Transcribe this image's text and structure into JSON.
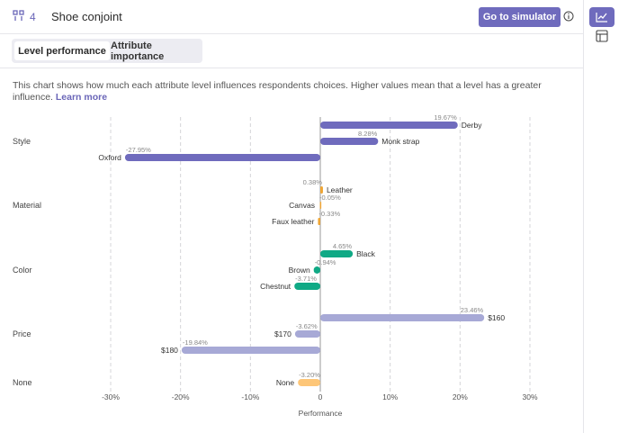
{
  "header": {
    "question_number": "4",
    "title": "Shoe conjoint",
    "simulator_button": "Go to simulator"
  },
  "tabs": [
    {
      "label": "Level performance",
      "active": true
    },
    {
      "label": "Attribute importance",
      "active": false
    }
  ],
  "description": {
    "text": "This chart shows how much each attribute level influences respondents choices. Higher values mean that a level has a greater influence. ",
    "link": "Learn more"
  },
  "colors": {
    "accent": "#6f6bbd",
    "Style": "#6f6bbd",
    "Material": "#f0a634",
    "Color": "#10a985",
    "Price": "#a7a9d6",
    "None": "#fdc678"
  },
  "chart_data": {
    "type": "bar",
    "orientation": "horizontal",
    "xlabel": "Performance",
    "xlim": [
      -30,
      30
    ],
    "xticks": [
      "-30%",
      "-20%",
      "-10%",
      "0",
      "10%",
      "20%",
      "30%"
    ],
    "xtick_values": [
      -30,
      -20,
      -10,
      0,
      10,
      20,
      30
    ],
    "grid": "vertical dashed",
    "groups": [
      {
        "attribute": "Style",
        "levels": [
          {
            "name": "Derby",
            "value": 19.67,
            "label": "19.67%"
          },
          {
            "name": "Monk strap",
            "value": 8.28,
            "label": "8.28%"
          },
          {
            "name": "Oxford",
            "value": -27.95,
            "label": "-27.95%"
          }
        ]
      },
      {
        "attribute": "Material",
        "levels": [
          {
            "name": "Leather",
            "value": 0.38,
            "label": "0.38%"
          },
          {
            "name": "Canvas",
            "value": -0.05,
            "label": "-0.05%"
          },
          {
            "name": "Faux leather",
            "value": -0.33,
            "label": "-0.33%"
          }
        ]
      },
      {
        "attribute": "Color",
        "levels": [
          {
            "name": "Black",
            "value": 4.65,
            "label": "4.65%"
          },
          {
            "name": "Brown",
            "value": -0.94,
            "label": "-0.94%"
          },
          {
            "name": "Chestnut",
            "value": -3.71,
            "label": "-3.71%"
          }
        ]
      },
      {
        "attribute": "Price",
        "levels": [
          {
            "name": "$160",
            "value": 23.46,
            "label": "23.46%"
          },
          {
            "name": "$170",
            "value": -3.62,
            "label": "-3.62%"
          },
          {
            "name": "$180",
            "value": -19.84,
            "label": "-19.84%"
          }
        ]
      },
      {
        "attribute": "None",
        "levels": [
          {
            "name": "None",
            "value": -3.2,
            "label": "-3.20%"
          }
        ]
      }
    ]
  }
}
